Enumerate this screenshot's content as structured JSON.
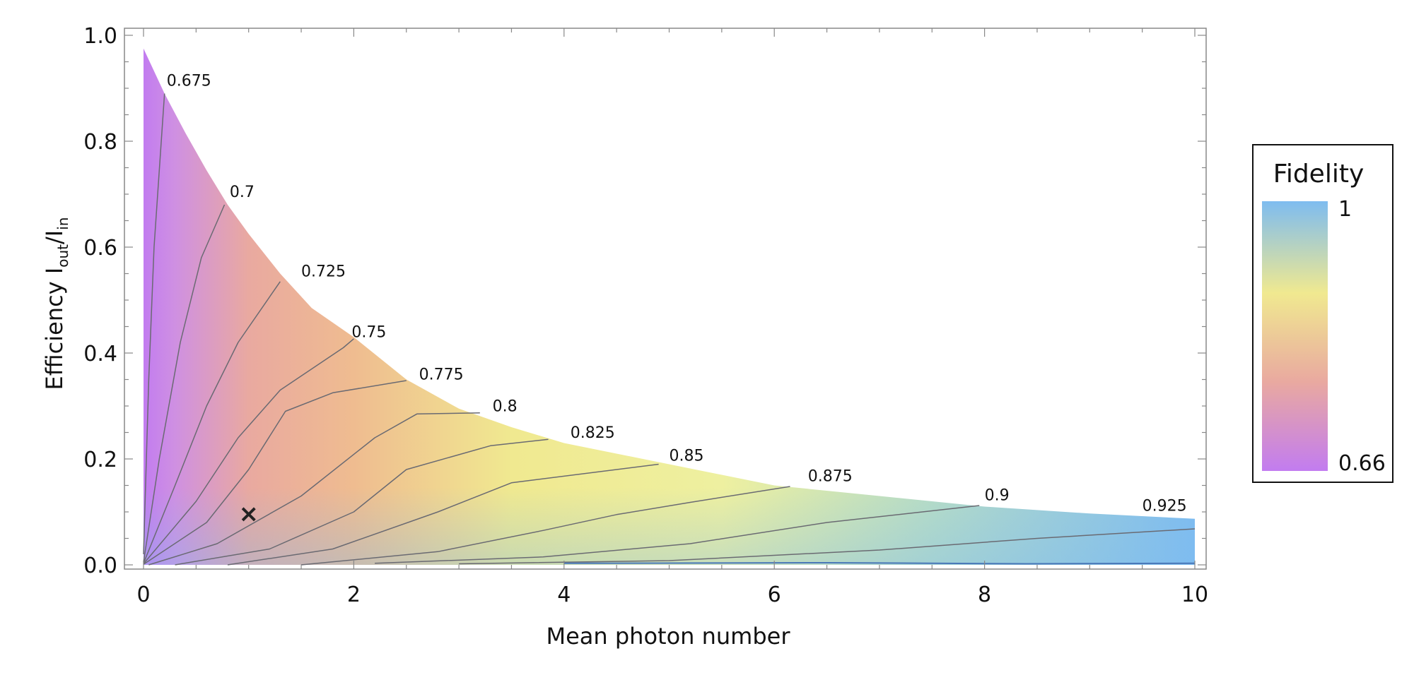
{
  "chart_data": {
    "type": "heatmap",
    "xlabel": "Mean photon number",
    "ylabel": {
      "main": "Efficiency  I",
      "sub1": "out",
      "slash": "/I",
      "sub2": "in"
    },
    "xlim": [
      0,
      10
    ],
    "ylim": [
      0,
      1.0
    ],
    "x_ticks": [
      "0",
      "2",
      "4",
      "6",
      "8",
      "10"
    ],
    "y_ticks": [
      "0.0",
      "0.2",
      "0.4",
      "0.6",
      "0.8",
      "1.0"
    ],
    "grid": false,
    "colorbar": {
      "title": "Fidelity",
      "min_label": "0.66",
      "max_label": "1",
      "colors": [
        "#c27cf0",
        "#e9a9a0",
        "#f0e990",
        "#7ebcf0"
      ]
    },
    "boundary_points": [
      {
        "x": 0.0,
        "y": 0.975
      },
      {
        "x": 0.2,
        "y": 0.89
      },
      {
        "x": 0.4,
        "y": 0.815
      },
      {
        "x": 0.6,
        "y": 0.745
      },
      {
        "x": 0.8,
        "y": 0.68
      },
      {
        "x": 1.0,
        "y": 0.625
      },
      {
        "x": 1.3,
        "y": 0.55
      },
      {
        "x": 1.6,
        "y": 0.485
      },
      {
        "x": 2.0,
        "y": 0.43
      },
      {
        "x": 2.5,
        "y": 0.35
      },
      {
        "x": 3.0,
        "y": 0.295
      },
      {
        "x": 3.5,
        "y": 0.26
      },
      {
        "x": 4.0,
        "y": 0.23
      },
      {
        "x": 5.0,
        "y": 0.19
      },
      {
        "x": 6.0,
        "y": 0.15
      },
      {
        "x": 7.0,
        "y": 0.13
      },
      {
        "x": 8.0,
        "y": 0.11
      },
      {
        "x": 9.0,
        "y": 0.097
      },
      {
        "x": 10.0,
        "y": 0.087
      }
    ],
    "contours": [
      {
        "label": "0.675",
        "points": [
          [
            0,
            0.02
          ],
          [
            0.05,
            0.35
          ],
          [
            0.1,
            0.6
          ],
          [
            0.2,
            0.89
          ]
        ],
        "label_at": [
          0.22,
          0.905
        ]
      },
      {
        "label": "0.7",
        "points": [
          [
            0,
            0.005
          ],
          [
            0.15,
            0.2
          ],
          [
            0.35,
            0.42
          ],
          [
            0.55,
            0.58
          ],
          [
            0.77,
            0.68
          ]
        ],
        "label_at": [
          0.82,
          0.695
        ]
      },
      {
        "label": "0.725",
        "points": [
          [
            0,
            0.003
          ],
          [
            0.3,
            0.15
          ],
          [
            0.6,
            0.3
          ],
          [
            0.9,
            0.42
          ],
          [
            1.3,
            0.535
          ]
        ],
        "label_at": [
          1.5,
          0.545
        ]
      },
      {
        "label": "0.75",
        "points": [
          [
            0,
            0.002
          ],
          [
            0.5,
            0.12
          ],
          [
            0.9,
            0.24
          ],
          [
            1.3,
            0.33
          ],
          [
            1.9,
            0.41
          ],
          [
            2.0,
            0.427
          ]
        ],
        "label_at": [
          1.98,
          0.43
        ]
      },
      {
        "label": "0.775",
        "points": [
          [
            0,
            0.001
          ],
          [
            0.6,
            0.08
          ],
          [
            1.0,
            0.18
          ],
          [
            1.35,
            0.29
          ],
          [
            1.8,
            0.325
          ],
          [
            2.5,
            0.348
          ]
        ],
        "label_at": [
          2.62,
          0.35
        ]
      },
      {
        "label": "0.8",
        "points": [
          [
            0.05,
            0.0
          ],
          [
            0.7,
            0.04
          ],
          [
            1.5,
            0.13
          ],
          [
            2.2,
            0.24
          ],
          [
            2.6,
            0.285
          ],
          [
            3.2,
            0.287
          ]
        ],
        "label_at": [
          3.32,
          0.29
        ]
      },
      {
        "label": "0.825",
        "points": [
          [
            0.3,
            0.0
          ],
          [
            1.2,
            0.03
          ],
          [
            2.0,
            0.1
          ],
          [
            2.5,
            0.18
          ],
          [
            3.3,
            0.225
          ],
          [
            3.85,
            0.237
          ]
        ],
        "label_at": [
          4.06,
          0.24
        ]
      },
      {
        "label": "0.85",
        "points": [
          [
            0.8,
            0.0
          ],
          [
            1.8,
            0.03
          ],
          [
            2.8,
            0.1
          ],
          [
            3.5,
            0.155
          ],
          [
            4.9,
            0.19
          ]
        ],
        "label_at": [
          5.0,
          0.197
        ]
      },
      {
        "label": "0.875",
        "points": [
          [
            1.5,
            0.0
          ],
          [
            2.8,
            0.025
          ],
          [
            3.8,
            0.065
          ],
          [
            4.5,
            0.095
          ],
          [
            5.2,
            0.118
          ],
          [
            6.15,
            0.148
          ]
        ],
        "label_at": [
          6.32,
          0.158
        ]
      },
      {
        "label": "0.9",
        "points": [
          [
            2.2,
            0.003
          ],
          [
            3.8,
            0.015
          ],
          [
            5.2,
            0.04
          ],
          [
            6.5,
            0.08
          ],
          [
            7.95,
            0.112
          ]
        ],
        "label_at": [
          8.0,
          0.122
        ]
      },
      {
        "label": "0.925",
        "points": [
          [
            3.0,
            0.002
          ],
          [
            5.0,
            0.008
          ],
          [
            7.0,
            0.028
          ],
          [
            8.5,
            0.05
          ],
          [
            10.0,
            0.068
          ]
        ],
        "label_at": [
          9.5,
          0.102
        ]
      },
      {
        "label": "",
        "points": [
          [
            4.0,
            0.003
          ],
          [
            6.5,
            0.004
          ],
          [
            8.4,
            0.002
          ],
          [
            10.0,
            0.003
          ]
        ],
        "label_at": null
      }
    ],
    "marker": {
      "x": 1.0,
      "y": 0.096,
      "symbol": "×"
    }
  }
}
